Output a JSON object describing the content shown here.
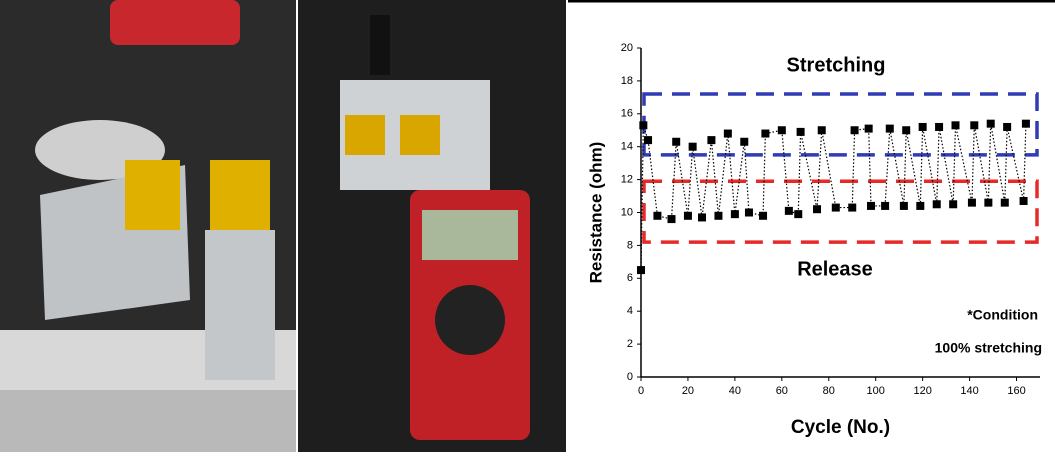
{
  "chart_data": {
    "type": "line",
    "x_label": "Cycle (No.)",
    "y_label": "Resistance (ohm)",
    "x": [
      0,
      1,
      3,
      7,
      13,
      15,
      20,
      22,
      26,
      30,
      33,
      37,
      40,
      44,
      46,
      52,
      53,
      60,
      63,
      67,
      68,
      75,
      77,
      83,
      90,
      91,
      97,
      98,
      104,
      106,
      112,
      113,
      119,
      120,
      126,
      127,
      133,
      134,
      141,
      142,
      148,
      149,
      155,
      156,
      163,
      164
    ],
    "values": [
      6.5,
      15.3,
      14.4,
      9.8,
      9.6,
      14.3,
      9.8,
      14.0,
      9.7,
      14.4,
      9.8,
      14.8,
      9.9,
      14.3,
      10.0,
      9.8,
      14.8,
      15.0,
      10.1,
      9.9,
      14.9,
      10.2,
      15.0,
      10.3,
      10.3,
      15.0,
      15.1,
      10.4,
      10.4,
      15.1,
      10.4,
      15.0,
      10.4,
      15.2,
      10.5,
      15.2,
      10.5,
      15.3,
      10.6,
      15.3,
      10.6,
      15.4,
      10.6,
      15.2,
      10.7,
      15.4
    ],
    "color": "#000000",
    "xlim": [
      0,
      170
    ],
    "xticks": [
      0,
      20,
      40,
      60,
      80,
      100,
      120,
      140,
      160
    ],
    "ylim": [
      0,
      20
    ],
    "yticks": [
      0,
      2,
      4,
      6,
      8,
      10,
      12,
      14,
      16,
      18,
      20
    ],
    "bands": [
      {
        "range": [
          13.5,
          17.2
        ],
        "color": "#2f3cb4"
      },
      {
        "range": [
          8.2,
          11.9
        ],
        "color": "#e62a2a"
      }
    ],
    "annotations": [
      "Stretching",
      "Release",
      "*Condition",
      "100% stretching"
    ]
  }
}
